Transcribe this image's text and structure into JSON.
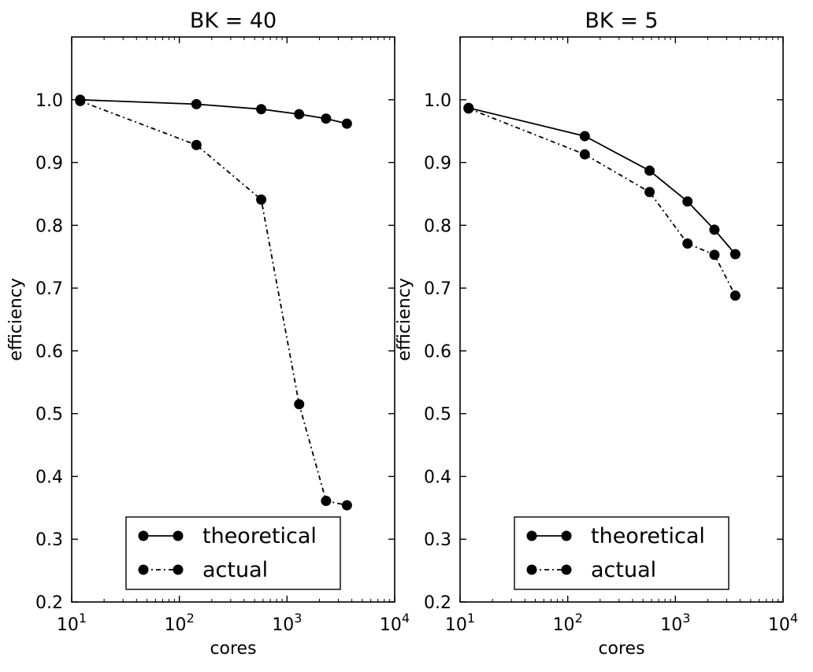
{
  "chart_data": [
    {
      "type": "line",
      "title": "BK = 40",
      "xlabel": "cores",
      "ylabel": "efficiency",
      "xscale": "log",
      "xlim": [
        10,
        10000
      ],
      "ylim": [
        0.2,
        1.1
      ],
      "xticks": [
        {
          "value": 10,
          "base": "10",
          "exp": "1"
        },
        {
          "value": 100,
          "base": "10",
          "exp": "2"
        },
        {
          "value": 1000,
          "base": "10",
          "exp": "3"
        },
        {
          "value": 10000,
          "base": "10",
          "exp": "4"
        }
      ],
      "yticks": [
        {
          "value": 0.2,
          "label": "0.2"
        },
        {
          "value": 0.3,
          "label": "0.3"
        },
        {
          "value": 0.4,
          "label": "0.4"
        },
        {
          "value": 0.5,
          "label": "0.5"
        },
        {
          "value": 0.6,
          "label": "0.6"
        },
        {
          "value": 0.7,
          "label": "0.7"
        },
        {
          "value": 0.8,
          "label": "0.8"
        },
        {
          "value": 0.9,
          "label": "0.9"
        },
        {
          "value": 1.0,
          "label": "1.0"
        }
      ],
      "grid": false,
      "legend_position": "bottom-center",
      "series": [
        {
          "name": "theoretical",
          "style": "solid",
          "marker": "circle",
          "color": "#000000",
          "x": [
            12,
            144,
            576,
            1296,
            2304,
            3600
          ],
          "y": [
            1.0,
            0.993,
            0.985,
            0.977,
            0.97,
            0.962
          ]
        },
        {
          "name": "actual",
          "style": "dashdot",
          "marker": "circle",
          "color": "#000000",
          "x": [
            12,
            144,
            576,
            1296,
            2304,
            3600
          ],
          "y": [
            0.998,
            0.928,
            0.841,
            0.515,
            0.361,
            0.354
          ]
        }
      ]
    },
    {
      "type": "line",
      "title": "BK = 5",
      "xlabel": "cores",
      "ylabel": "efficiency",
      "xscale": "log",
      "xlim": [
        10,
        10000
      ],
      "ylim": [
        0.2,
        1.1
      ],
      "xticks": [
        {
          "value": 10,
          "base": "10",
          "exp": "1"
        },
        {
          "value": 100,
          "base": "10",
          "exp": "2"
        },
        {
          "value": 1000,
          "base": "10",
          "exp": "3"
        },
        {
          "value": 10000,
          "base": "10",
          "exp": "4"
        }
      ],
      "yticks": [
        {
          "value": 0.2,
          "label": "0.2"
        },
        {
          "value": 0.3,
          "label": "0.3"
        },
        {
          "value": 0.4,
          "label": "0.4"
        },
        {
          "value": 0.5,
          "label": "0.5"
        },
        {
          "value": 0.6,
          "label": "0.6"
        },
        {
          "value": 0.7,
          "label": "0.7"
        },
        {
          "value": 0.8,
          "label": "0.8"
        },
        {
          "value": 0.9,
          "label": "0.9"
        },
        {
          "value": 1.0,
          "label": "1.0"
        }
      ],
      "grid": false,
      "legend_position": "bottom-center",
      "series": [
        {
          "name": "theoretical",
          "style": "solid",
          "marker": "circle",
          "color": "#000000",
          "x": [
            12,
            144,
            576,
            1296,
            2304,
            3600
          ],
          "y": [
            0.987,
            0.942,
            0.887,
            0.838,
            0.793,
            0.754
          ]
        },
        {
          "name": "actual",
          "style": "dashdot",
          "marker": "circle",
          "color": "#000000",
          "x": [
            12,
            144,
            576,
            1296,
            2304,
            3600
          ],
          "y": [
            0.986,
            0.913,
            0.853,
            0.771,
            0.753,
            0.688
          ]
        }
      ]
    }
  ]
}
